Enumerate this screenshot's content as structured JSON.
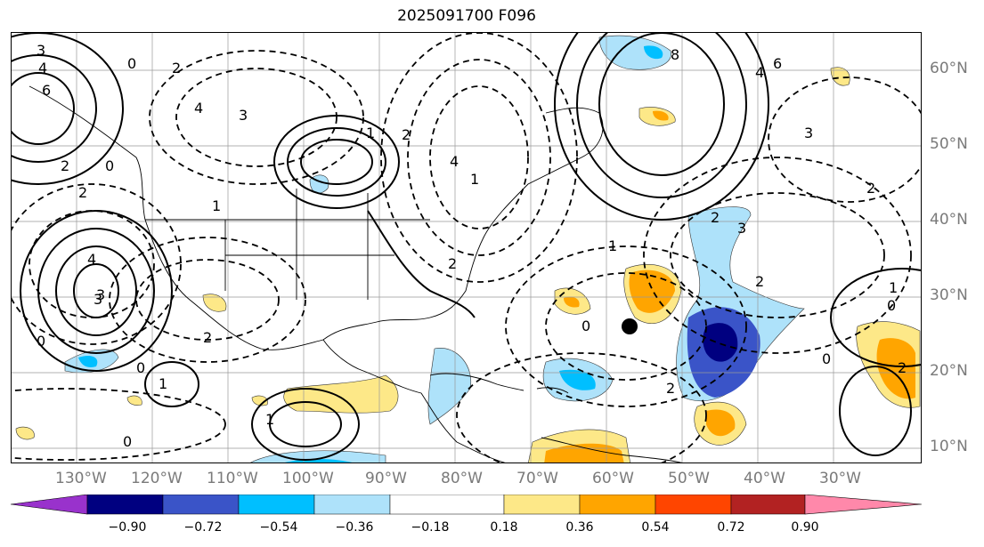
{
  "title": "2025091700 F096",
  "lon_labels": [
    "130°W",
    "120°W",
    "110°W",
    "100°W",
    "90°W",
    "80°W",
    "70°W",
    "60°W",
    "50°W",
    "40°W",
    "30°W"
  ],
  "lat_labels": [
    "60°N",
    "50°N",
    "40°N",
    "30°N",
    "20°N",
    "10°N"
  ],
  "colorbar": {
    "ticks": [
      "−0.90",
      "−0.72",
      "−0.54",
      "−0.36",
      "−0.18",
      "0.18",
      "0.36",
      "0.54",
      "0.72",
      "0.90"
    ],
    "colors": [
      "#9932cc",
      "#000080",
      "#3a54c8",
      "#00bfff",
      "#aee2fa",
      "#ffffff",
      "#fde888",
      "#ffa500",
      "#ff4500",
      "#b22222",
      "#ff88aa"
    ]
  },
  "contour_labels": [
    "3",
    "4",
    "6",
    "2",
    "0",
    "4",
    "3",
    "2",
    "0",
    "4",
    "2",
    "1",
    "2",
    "3",
    "1",
    "0",
    "8",
    "6",
    "4",
    "3",
    "2",
    "1",
    "2",
    "0",
    "2",
    "3",
    "2",
    "1",
    "0",
    "2",
    "1",
    "1",
    "0",
    "3",
    "4",
    "2",
    "0",
    "1",
    "0",
    "2"
  ],
  "marker": "storm-center"
}
